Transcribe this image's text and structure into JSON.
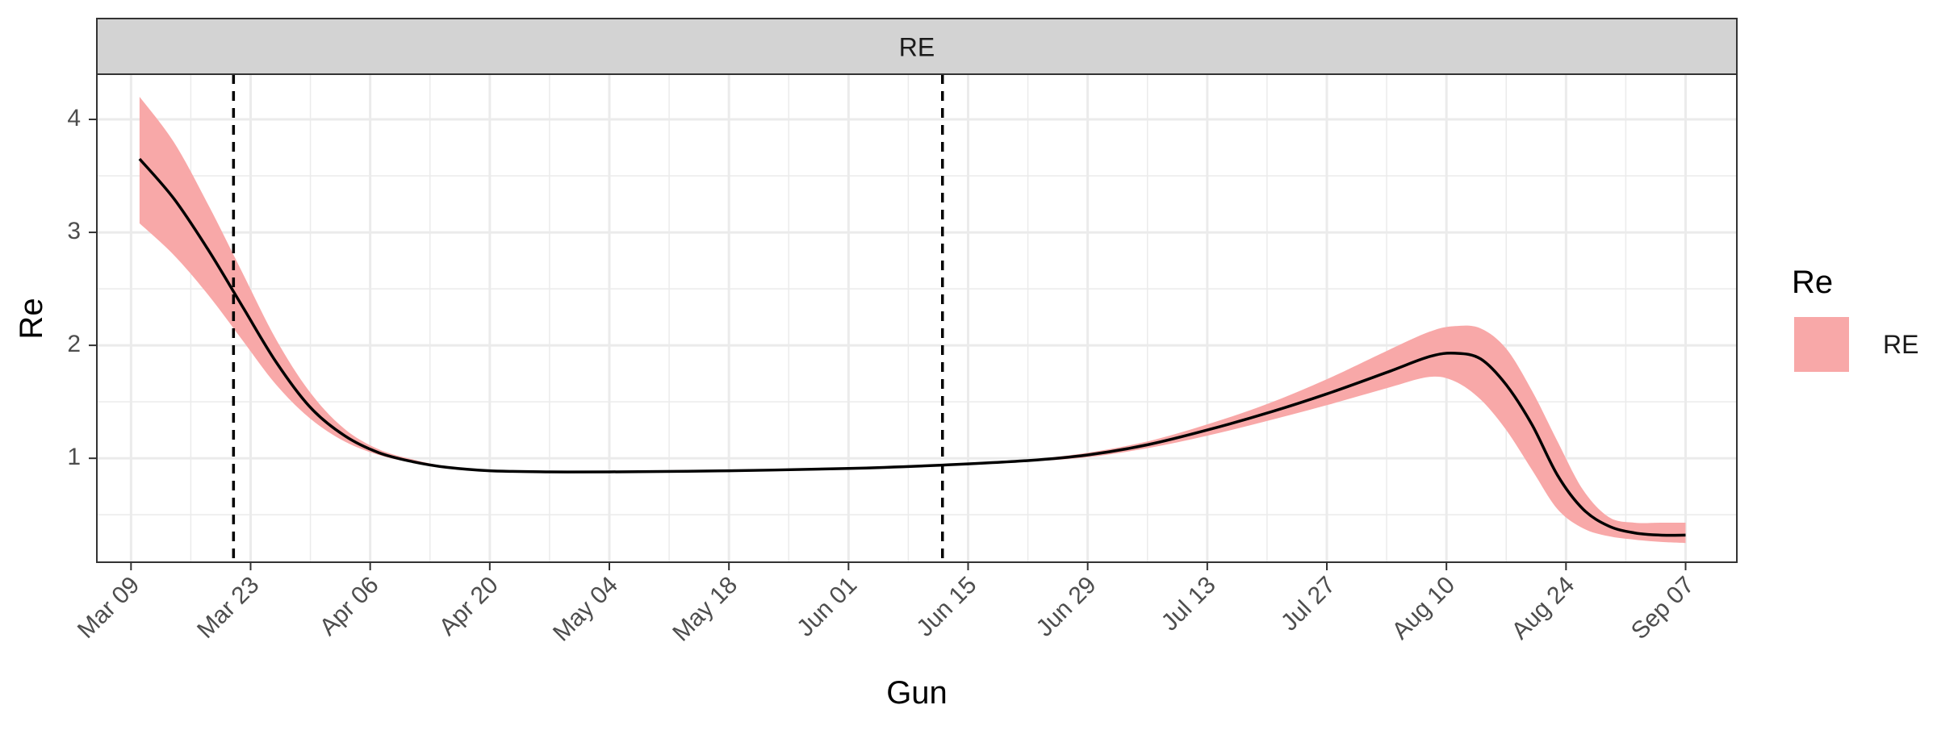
{
  "chart_data": {
    "type": "line",
    "facet_label": "RE",
    "xlabel": "Gun",
    "ylabel": "Re",
    "x_ticks": [
      "Mar 09",
      "Mar 23",
      "Apr 06",
      "Apr 20",
      "May 04",
      "May 18",
      "Jun 01",
      "Jun 15",
      "Jun 29",
      "Jul 13",
      "Jul 27",
      "Aug 10",
      "Aug 24",
      "Sep 07"
    ],
    "y_ticks": [
      1,
      2,
      3,
      4
    ],
    "xlim": [
      "2020-03-05",
      "2020-09-13"
    ],
    "ylim": [
      0.08,
      4.4
    ],
    "grid": true,
    "legend": {
      "title": "Re",
      "position": "right",
      "entries": [
        {
          "label": "RE",
          "color": "#F8A8A8"
        }
      ]
    },
    "vlines": [
      "2020-03-21",
      "2020-06-12"
    ],
    "colors": {
      "line": "#000000",
      "ribbon": "#F8A8A8",
      "strip": "#D3D3D3",
      "grid": "#EBEBEB"
    },
    "series": [
      {
        "x": [
          "2020-03-10",
          "2020-03-14",
          "2020-03-18",
          "2020-03-22",
          "2020-03-26",
          "2020-03-30",
          "2020-04-03",
          "2020-04-07",
          "2020-04-11",
          "2020-04-15",
          "2020-04-20",
          "2020-04-27",
          "2020-05-04",
          "2020-05-18",
          "2020-06-01",
          "2020-06-12",
          "2020-06-22",
          "2020-06-29",
          "2020-07-06",
          "2020-07-13",
          "2020-07-20",
          "2020-07-27",
          "2020-08-03",
          "2020-08-08",
          "2020-08-11",
          "2020-08-14",
          "2020-08-17",
          "2020-08-20",
          "2020-08-23",
          "2020-08-26",
          "2020-08-29",
          "2020-09-01",
          "2020-09-04",
          "2020-09-07"
        ],
        "y": [
          3.65,
          3.3,
          2.85,
          2.35,
          1.85,
          1.45,
          1.2,
          1.05,
          0.97,
          0.92,
          0.89,
          0.88,
          0.88,
          0.89,
          0.91,
          0.94,
          0.98,
          1.03,
          1.12,
          1.25,
          1.4,
          1.57,
          1.76,
          1.9,
          1.93,
          1.88,
          1.65,
          1.3,
          0.85,
          0.55,
          0.4,
          0.34,
          0.32,
          0.32
        ],
        "lower": [
          3.08,
          2.8,
          2.45,
          2.05,
          1.65,
          1.35,
          1.15,
          1.03,
          0.96,
          0.91,
          0.88,
          0.87,
          0.87,
          0.88,
          0.9,
          0.93,
          0.97,
          1.01,
          1.09,
          1.2,
          1.33,
          1.47,
          1.62,
          1.72,
          1.68,
          1.52,
          1.25,
          0.9,
          0.55,
          0.38,
          0.31,
          0.28,
          0.26,
          0.25
        ],
        "upper": [
          4.2,
          3.8,
          3.25,
          2.65,
          2.05,
          1.58,
          1.26,
          1.08,
          0.99,
          0.93,
          0.9,
          0.89,
          0.89,
          0.9,
          0.92,
          0.95,
          0.99,
          1.05,
          1.15,
          1.3,
          1.48,
          1.7,
          1.95,
          2.12,
          2.17,
          2.15,
          1.97,
          1.6,
          1.15,
          0.72,
          0.48,
          0.43,
          0.43,
          0.43
        ]
      }
    ]
  }
}
